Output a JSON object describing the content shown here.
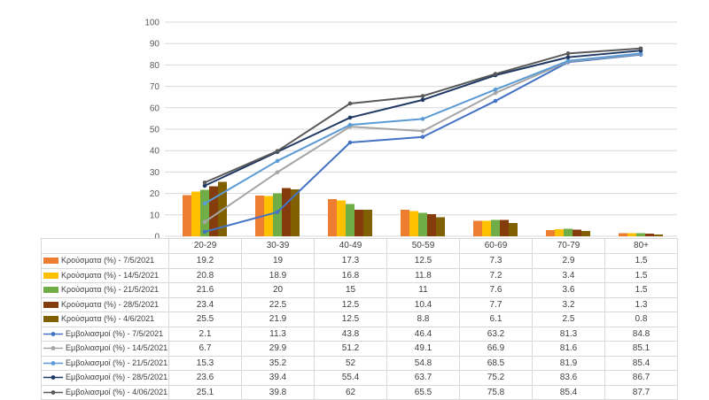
{
  "chart_data": {
    "type": "bar+line",
    "title": "",
    "categories": [
      "20-29",
      "30-39",
      "40-49",
      "50-59",
      "60-69",
      "70-79",
      "80+"
    ],
    "bar_series": [
      {
        "name": "Κρούσματα (%) - 7/5/2021",
        "color": "#ED7D31",
        "values": [
          19.2,
          19,
          17.3,
          12.5,
          7.3,
          2.9,
          1.5
        ]
      },
      {
        "name": "Κρούσματα (%) - 14/5/2021",
        "color": "#FFC000",
        "values": [
          20.8,
          18.9,
          16.8,
          11.8,
          7.2,
          3.4,
          1.5
        ]
      },
      {
        "name": "Κρούσματα (%) - 21/5/2021",
        "color": "#70AD47",
        "values": [
          21.6,
          20,
          15,
          11,
          7.6,
          3.6,
          1.5
        ]
      },
      {
        "name": "Κρούσματα (%) - 28/5/2021",
        "color": "#843C0C",
        "values": [
          23.4,
          22.5,
          12.5,
          10.4,
          7.7,
          3.2,
          1.3
        ]
      },
      {
        "name": "Κρούσματα (%) - 4/6/2021",
        "color": "#806000",
        "values": [
          25.5,
          21.9,
          12.5,
          8.8,
          6.1,
          2.5,
          0.8
        ]
      }
    ],
    "line_series": [
      {
        "name": "Εμβολιασμοί (%) - 7/5/2021",
        "color": "#4472C4",
        "values": [
          2.1,
          11.3,
          43.8,
          46.4,
          63.2,
          81.3,
          84.8
        ]
      },
      {
        "name": "Εμβολιασμοί (%) - 14/5/2021",
        "color": "#A5A5A5",
        "values": [
          6.7,
          29.9,
          51.2,
          49.1,
          66.9,
          81.6,
          85.1
        ]
      },
      {
        "name": "Εμβολιασμοί (%) - 21/5/2021",
        "color": "#5B9BD5",
        "values": [
          15.3,
          35.2,
          52,
          54.8,
          68.5,
          81.9,
          85.4
        ]
      },
      {
        "name": "Εμβολιασμοί (%) - 28/5/2021",
        "color": "#1F3864",
        "values": [
          23.6,
          39.4,
          55.4,
          63.7,
          75.2,
          83.6,
          86.7
        ]
      },
      {
        "name": "Εμβολιασμοί (%) - 4/06/2021",
        "color": "#595959",
        "values": [
          25.1,
          39.8,
          62,
          65.5,
          75.8,
          85.4,
          87.7
        ]
      }
    ],
    "xlabel": "",
    "ylabel": "",
    "ylim": [
      0,
      100
    ],
    "ytick_step": 10,
    "grid": true,
    "gridline_color": "#D9D9D9",
    "axis_text_color": "#595959",
    "table_text_color": "#404040",
    "legend_position": "data-table-left-column"
  }
}
